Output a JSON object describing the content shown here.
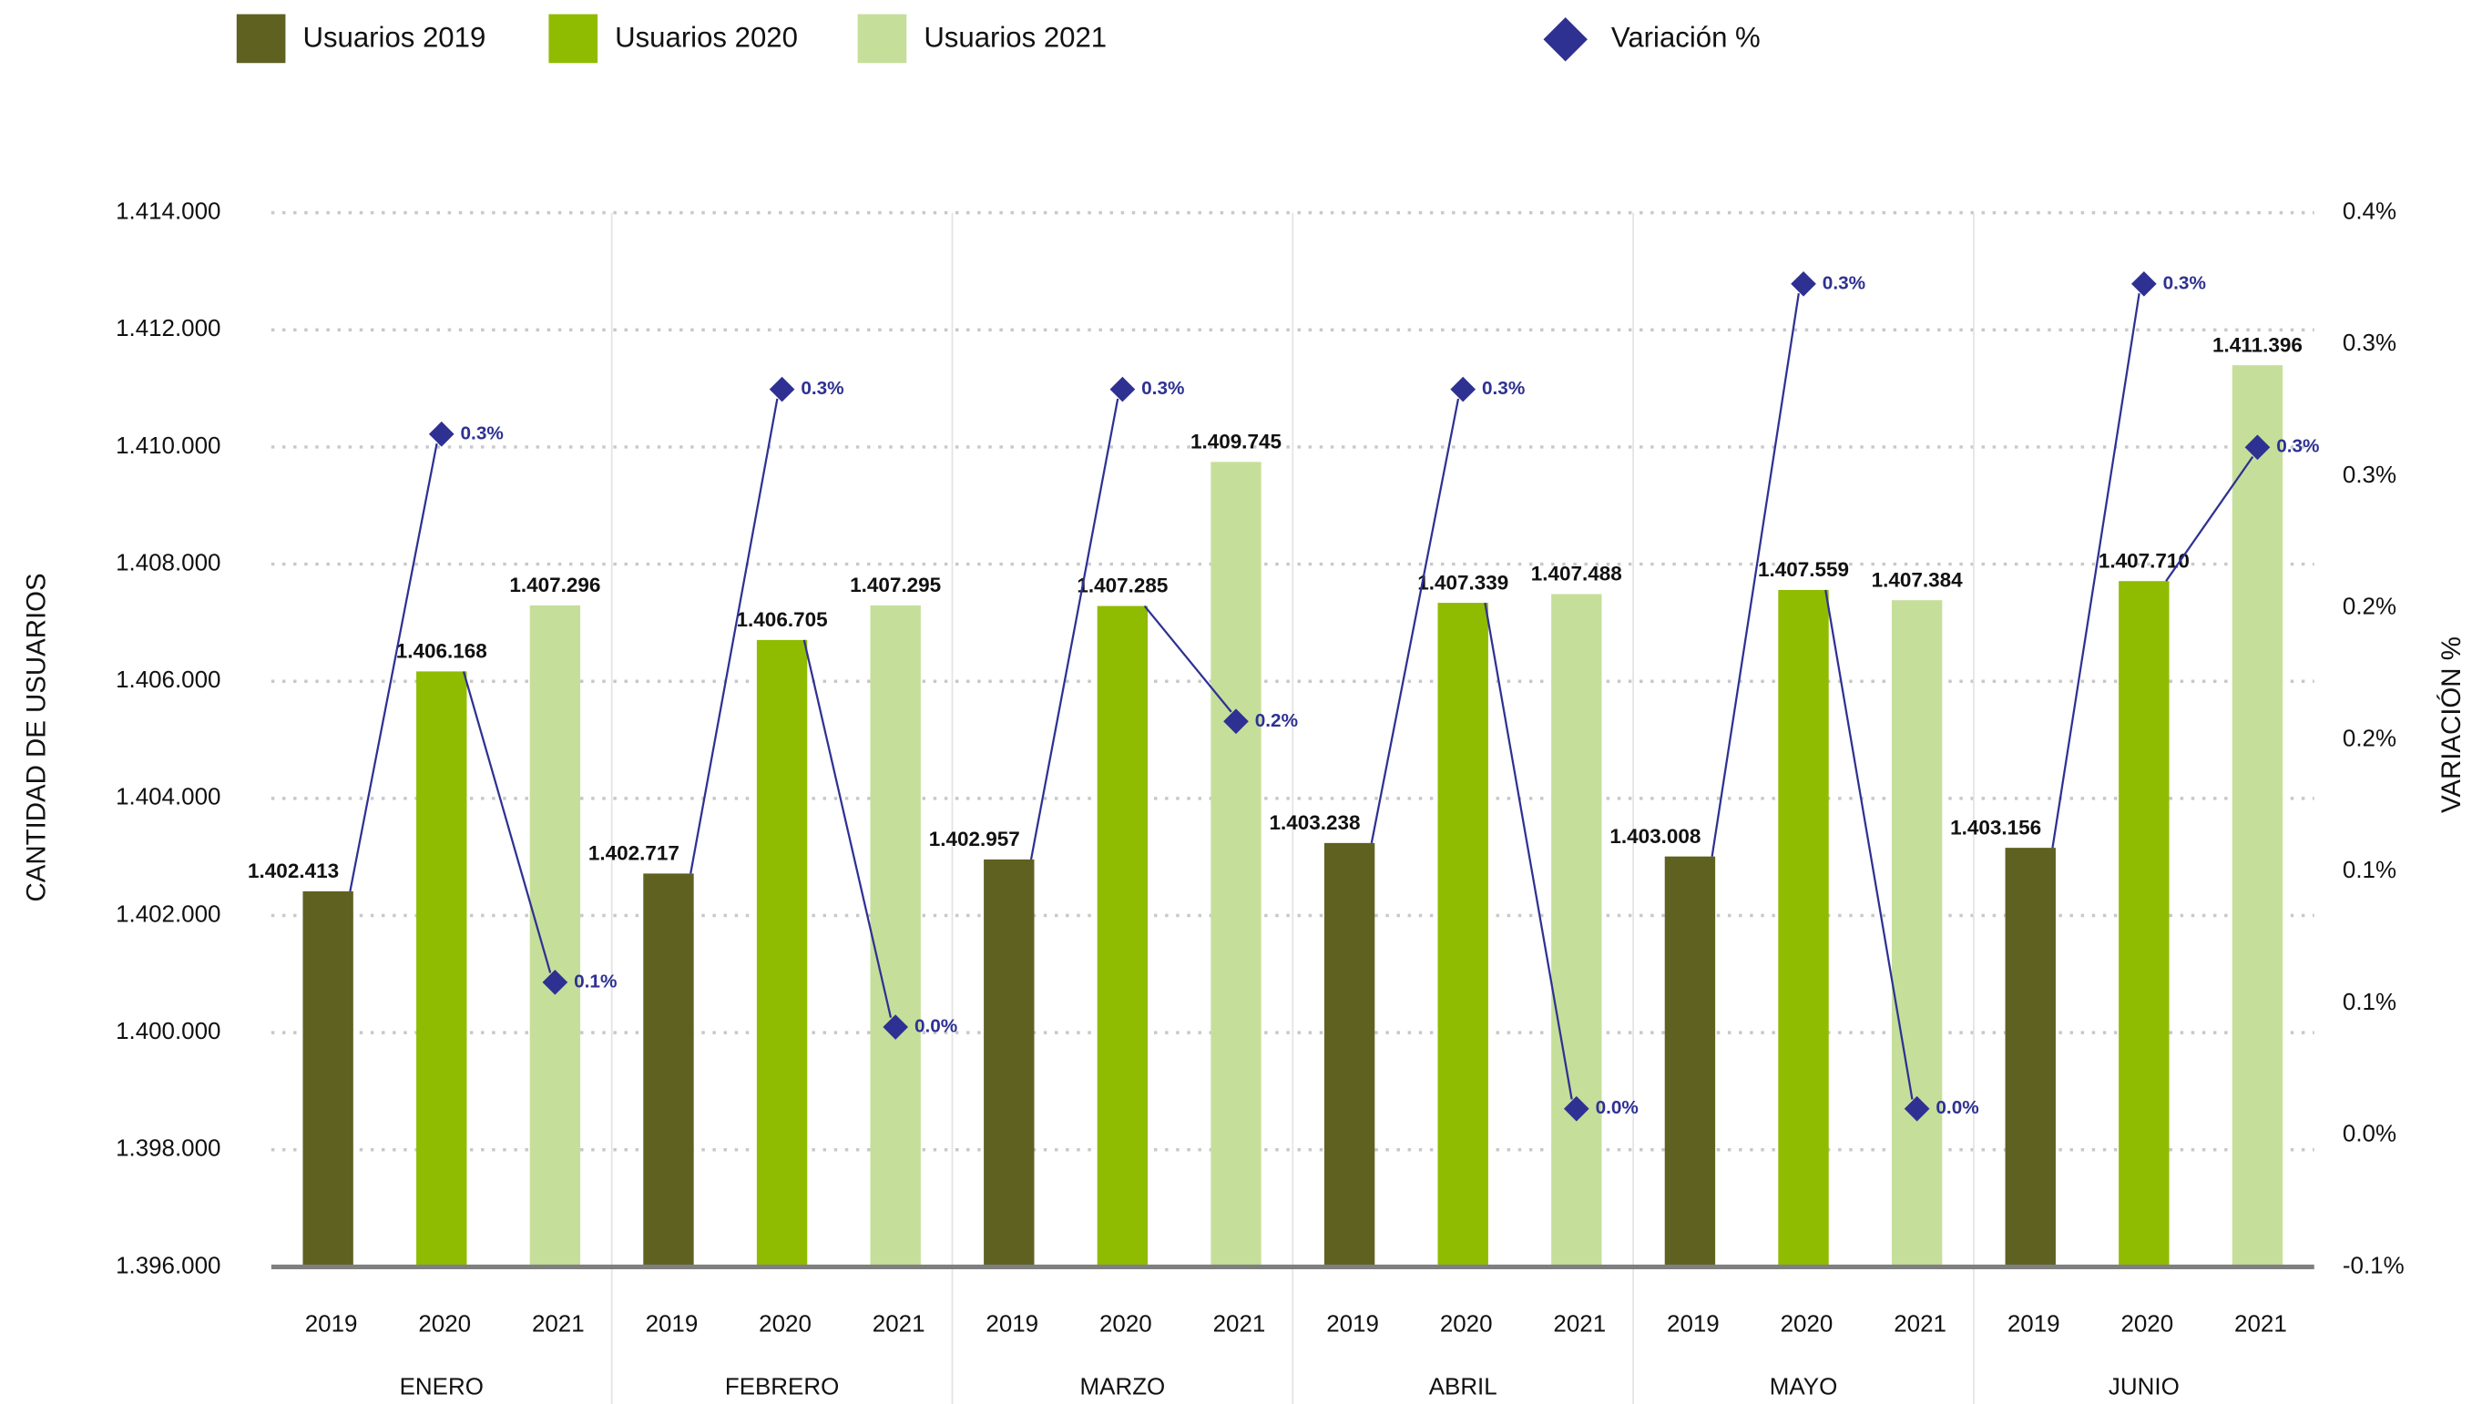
{
  "chart_data": {
    "type": "bar",
    "y_title": "CANTIDAD DE USUARIOS",
    "y2_title": "VARIACIÓN %",
    "categories": [
      "ENERO",
      "FEBRERO",
      "MARZO",
      "ABRIL",
      "MAYO",
      "JUNIO"
    ],
    "years": [
      "2019",
      "2020",
      "2021"
    ],
    "series": [
      {
        "name": "Usuarios 2019",
        "color": "#5f6121",
        "values": [
          1402413,
          1402717,
          1402957,
          1403238,
          1403008,
          1403156
        ],
        "value_labels": [
          "1.402.413",
          "1.402.717",
          "1.402.957",
          "1.403.238",
          "1.403.008",
          "1.403.156"
        ]
      },
      {
        "name": "Usuarios 2020",
        "color": "#8fbc00",
        "values": [
          1406168,
          1406705,
          1407285,
          1407339,
          1407559,
          1407710
        ],
        "value_labels": [
          "1.406.168",
          "1.406.705",
          "1.407.285",
          "1.407.339",
          "1.407.559",
          "1.407.710"
        ]
      },
      {
        "name": "Usuarios 2021",
        "color": "#c5df9a",
        "values": [
          1407296,
          1407295,
          1409745,
          1407488,
          1407384,
          1411396
        ],
        "value_labels": [
          "1.407.296",
          "1.407.295",
          "1.409.745",
          "1.407.488",
          "1.407.384",
          "1.411.396"
        ]
      },
      {
        "name": "Variación %",
        "color": "#2e3192",
        "axis": "y2",
        "values": [
          [
            0.266,
            0.058
          ],
          [
            0.283,
            0.041
          ],
          [
            0.283,
            0.157
          ],
          [
            0.283,
            0.01
          ],
          [
            0.323,
            0.01
          ],
          [
            0.323,
            0.261
          ]
        ],
        "value_labels": [
          [
            "0.3%",
            "0.1%"
          ],
          [
            "0.3%",
            "0.0%"
          ],
          [
            "0.3%",
            "0.2%"
          ],
          [
            "0.3%",
            "0.0%"
          ],
          [
            "0.3%",
            "0.0%"
          ],
          [
            "0.3%",
            "0.3%"
          ]
        ]
      }
    ],
    "ylim": [
      1396000,
      1414000
    ],
    "yticks": [
      {
        "value": 1396000,
        "label": "1.396.000"
      },
      {
        "value": 1398000,
        "label": "1.398.000"
      },
      {
        "value": 1400000,
        "label": "1.400.000"
      },
      {
        "value": 1402000,
        "label": "1.402.000"
      },
      {
        "value": 1404000,
        "label": "1.404.000"
      },
      {
        "value": 1406000,
        "label": "1.406.000"
      },
      {
        "value": 1408000,
        "label": "1.408.000"
      },
      {
        "value": 1410000,
        "label": "1.410.000"
      },
      {
        "value": 1412000,
        "label": "1.412.000"
      },
      {
        "value": 1414000,
        "label": "1.414.000"
      }
    ],
    "y2lim": [
      -0.05,
      0.35
    ],
    "y2ticks": [
      {
        "value": -0.05,
        "label": "-0.1%"
      },
      {
        "value": 0,
        "label": "0.0%"
      },
      {
        "value": 0.05,
        "label": "0.1%"
      },
      {
        "value": 0.1,
        "label": "0.1%"
      },
      {
        "value": 0.15,
        "label": "0.2%"
      },
      {
        "value": 0.2,
        "label": "0.2%"
      },
      {
        "value": 0.25,
        "label": "0.3%"
      },
      {
        "value": 0.3,
        "label": "0.3%"
      },
      {
        "value": 0.35,
        "label": "0.4%"
      }
    ],
    "grid": true
  }
}
